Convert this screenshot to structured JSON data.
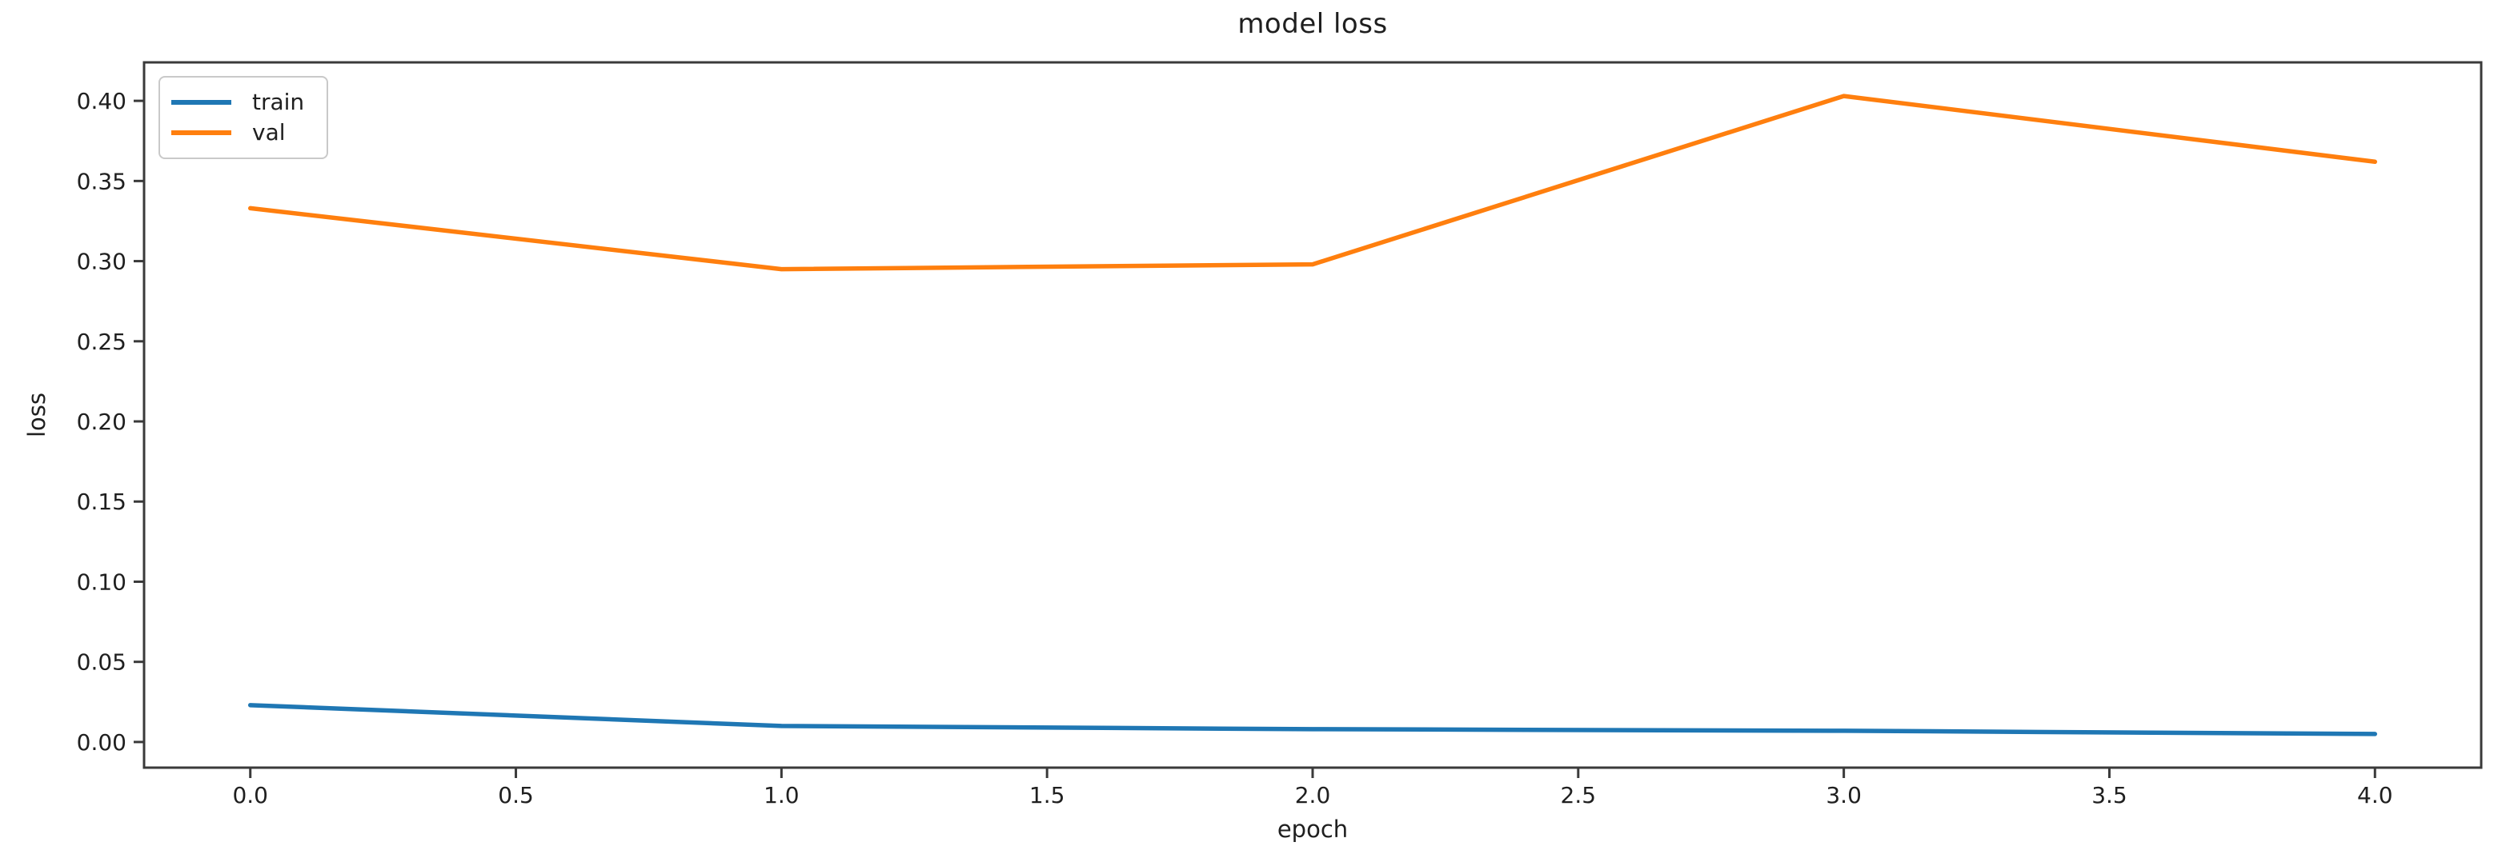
{
  "figure": {
    "title": "model loss",
    "xlabel": "epoch",
    "ylabel": "loss"
  },
  "legend": {
    "items": [
      {
        "label": "train",
        "color": "#1f77b4"
      },
      {
        "label": "val",
        "color": "#ff7f0e"
      }
    ]
  },
  "chart_data": {
    "type": "line",
    "title": "model loss",
    "xlabel": "epoch",
    "ylabel": "loss",
    "x": [
      0,
      1,
      2,
      3,
      4
    ],
    "series": [
      {
        "name": "train",
        "color": "#1f77b4",
        "values": [
          0.023,
          0.01,
          0.008,
          0.007,
          0.005
        ]
      },
      {
        "name": "val",
        "color": "#ff7f0e",
        "values": [
          0.333,
          0.295,
          0.298,
          0.403,
          0.362
        ]
      }
    ],
    "xticks": [
      0.0,
      0.5,
      1.0,
      1.5,
      2.0,
      2.5,
      3.0,
      3.5,
      4.0
    ],
    "xtick_labels": [
      "0.0",
      "0.5",
      "1.0",
      "1.5",
      "2.0",
      "2.5",
      "3.0",
      "3.5",
      "4.0"
    ],
    "yticks": [
      0.0,
      0.05,
      0.1,
      0.15,
      0.2,
      0.25,
      0.3,
      0.35,
      0.4
    ],
    "ytick_labels": [
      "0.00",
      "0.05",
      "0.10",
      "0.15",
      "0.20",
      "0.25",
      "0.30",
      "0.35",
      "0.40"
    ],
    "xlim": [
      -0.2,
      4.2
    ],
    "ylim": [
      -0.016,
      0.424
    ],
    "grid": false,
    "legend_position": "upper left"
  },
  "colors": {
    "background": "#ffffff",
    "spine": "#3a3a3a",
    "tick": "#3a3a3a",
    "text": "#1f1f1f",
    "legend_border": "#c9c9c9"
  }
}
